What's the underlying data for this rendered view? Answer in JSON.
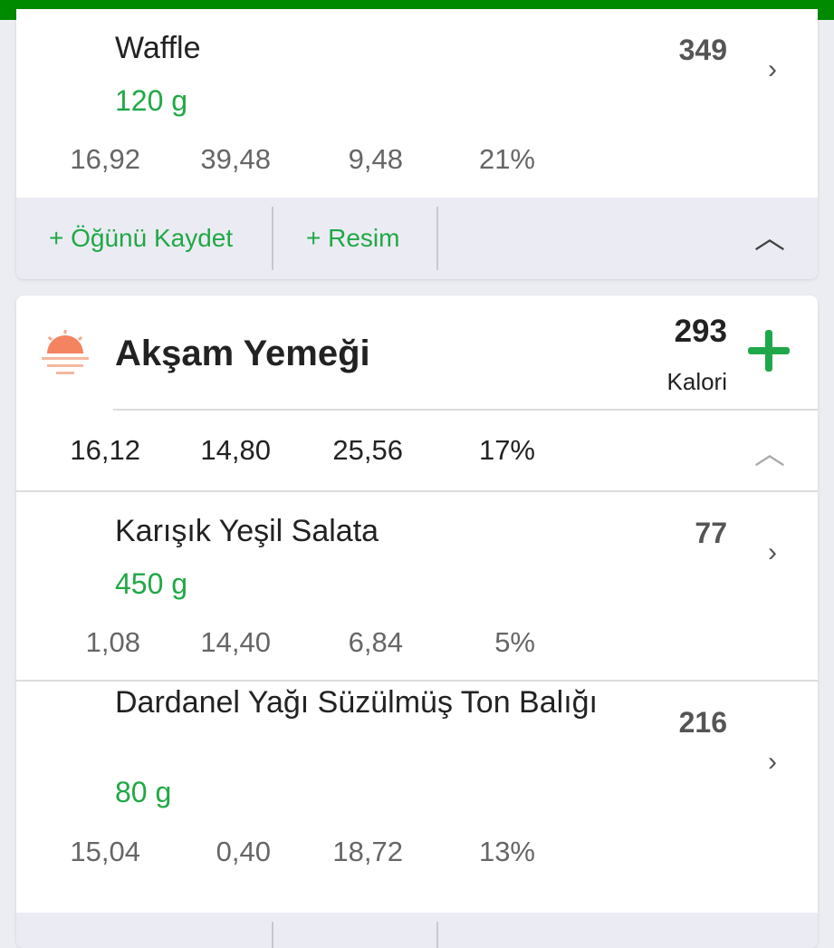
{
  "colors": {
    "brand": "#008a00",
    "accent": "#20a845"
  },
  "breakfast_card": {
    "item": {
      "name": "Waffle",
      "qty": "120  g",
      "kcal": "349",
      "macros": [
        "16,92",
        "39,48",
        "9,48",
        "21%"
      ]
    },
    "footer": {
      "save_meal": "+ Öğünü Kaydet",
      "photo": "+ Resim",
      "collapse_icon": "chevron-up-icon"
    }
  },
  "dinner_card": {
    "icon": "sunset-icon",
    "title": "Akşam Yemeği",
    "kcal": "293",
    "kcal_label": "Kalori",
    "add_icon": "plus-icon",
    "totals": [
      "16,12",
      "14,80",
      "25,56",
      "17%"
    ],
    "items": [
      {
        "name": "Karışık Yeşil Salata",
        "qty": "450  g",
        "kcal": "77",
        "macros": [
          "1,08",
          "14,40",
          "6,84",
          "5%"
        ]
      },
      {
        "name": "Dardanel Yağı Süzülmüş Ton Balığı",
        "qty": "80  g",
        "kcal": "216",
        "macros": [
          "15,04",
          "0,40",
          "18,72",
          "13%"
        ]
      }
    ]
  }
}
